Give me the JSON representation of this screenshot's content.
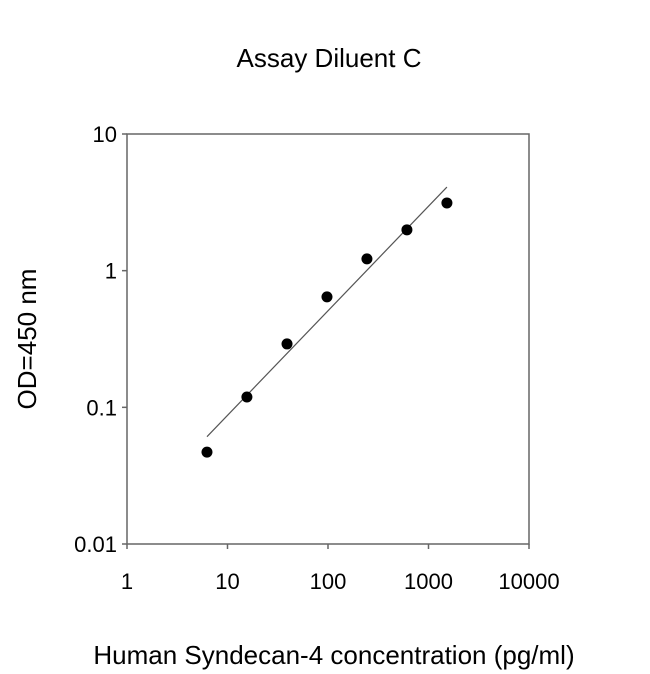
{
  "chart_data": {
    "type": "scatter",
    "title": "Assay Diluent C",
    "xlabel": "Human Syndecan-4 concentration (pg/ml)",
    "ylabel": "OD=450 nm",
    "xscale": "log",
    "yscale": "log",
    "xlim": [
      1,
      10000
    ],
    "ylim": [
      0.01,
      10
    ],
    "xticks": [
      "1",
      "10",
      "100",
      "1000",
      "10000"
    ],
    "yticks": [
      "0.01",
      "0.1",
      "1",
      "10"
    ],
    "grid": false,
    "legend": null,
    "series": [
      {
        "name": "Standard",
        "marker": "filled-circle",
        "x": [
          6.25,
          15.6,
          39.1,
          97.7,
          244,
          610,
          1525
        ],
        "y": [
          0.047,
          0.119,
          0.291,
          0.643,
          1.22,
          1.99,
          3.13
        ]
      },
      {
        "name": "Fit line",
        "type": "line",
        "x": [
          6.25,
          1525
        ],
        "y": [
          0.061,
          4.09
        ]
      }
    ]
  },
  "colors": {
    "points": "#000000",
    "axis": "#666666",
    "fit": "#555555"
  }
}
